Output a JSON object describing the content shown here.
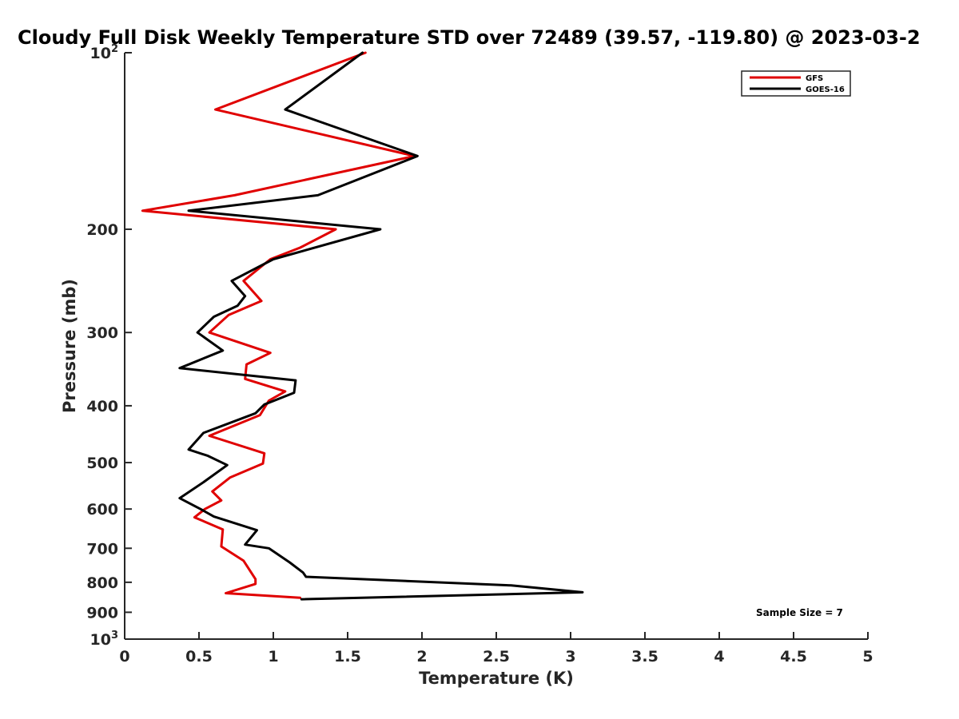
{
  "chart_data": {
    "type": "line",
    "title": "Cloudy Full Disk Weekly Temperature STD over 72489 (39.57, -119.80) @ 2023-03-2",
    "xlabel": "Temperature (K)",
    "ylabel": "Pressure (mb)",
    "xlim": [
      0,
      5
    ],
    "ylim": [
      100,
      1000
    ],
    "y_scale": "log",
    "y_reversed": true,
    "grid": false,
    "x_ticks": [
      {
        "value": 0,
        "label": "0"
      },
      {
        "value": 0.5,
        "label": "0.5"
      },
      {
        "value": 1,
        "label": "1"
      },
      {
        "value": 1.5,
        "label": "1.5"
      },
      {
        "value": 2,
        "label": "2"
      },
      {
        "value": 2.5,
        "label": "2.5"
      },
      {
        "value": 3,
        "label": "3"
      },
      {
        "value": 3.5,
        "label": "3.5"
      },
      {
        "value": 4,
        "label": "4"
      },
      {
        "value": 4.5,
        "label": "4.5"
      },
      {
        "value": 5,
        "label": "5"
      }
    ],
    "y_ticks": [
      {
        "value": 100,
        "label": "10",
        "sup": "2"
      },
      {
        "value": 200,
        "label": "200",
        "sup": ""
      },
      {
        "value": 300,
        "label": "300",
        "sup": ""
      },
      {
        "value": 400,
        "label": "400",
        "sup": ""
      },
      {
        "value": 500,
        "label": "500",
        "sup": ""
      },
      {
        "value": 600,
        "label": "600",
        "sup": ""
      },
      {
        "value": 700,
        "label": "700",
        "sup": ""
      },
      {
        "value": 800,
        "label": "800",
        "sup": ""
      },
      {
        "value": 900,
        "label": "900",
        "sup": ""
      },
      {
        "value": 1000,
        "label": "10",
        "sup": "3"
      }
    ],
    "legend_position": "top-right",
    "annotation": "Sample Size = 7",
    "series": [
      {
        "name": "GFS",
        "color": "#e00000",
        "points": [
          {
            "x": 1.62,
            "y": 100
          },
          {
            "x": 0.61,
            "y": 125
          },
          {
            "x": 1.95,
            "y": 150
          },
          {
            "x": 0.74,
            "y": 175
          },
          {
            "x": 0.12,
            "y": 186
          },
          {
            "x": 1.42,
            "y": 200
          },
          {
            "x": 1.18,
            "y": 215
          },
          {
            "x": 0.98,
            "y": 225
          },
          {
            "x": 0.8,
            "y": 245
          },
          {
            "x": 0.92,
            "y": 265
          },
          {
            "x": 0.7,
            "y": 280
          },
          {
            "x": 0.57,
            "y": 300
          },
          {
            "x": 0.98,
            "y": 325
          },
          {
            "x": 0.82,
            "y": 340
          },
          {
            "x": 0.81,
            "y": 360
          },
          {
            "x": 1.08,
            "y": 378
          },
          {
            "x": 0.97,
            "y": 392
          },
          {
            "x": 0.91,
            "y": 415
          },
          {
            "x": 0.57,
            "y": 450
          },
          {
            "x": 0.94,
            "y": 482
          },
          {
            "x": 0.93,
            "y": 502
          },
          {
            "x": 0.71,
            "y": 530
          },
          {
            "x": 0.59,
            "y": 560
          },
          {
            "x": 0.65,
            "y": 580
          },
          {
            "x": 0.54,
            "y": 600
          },
          {
            "x": 0.47,
            "y": 620
          },
          {
            "x": 0.66,
            "y": 650
          },
          {
            "x": 0.65,
            "y": 695
          },
          {
            "x": 0.8,
            "y": 735
          },
          {
            "x": 0.88,
            "y": 790
          },
          {
            "x": 0.88,
            "y": 805
          },
          {
            "x": 0.68,
            "y": 835
          },
          {
            "x": 1.18,
            "y": 850
          }
        ]
      },
      {
        "name": "GOES-16",
        "color": "#000000",
        "points": [
          {
            "x": 1.6,
            "y": 100
          },
          {
            "x": 1.08,
            "y": 125
          },
          {
            "x": 1.97,
            "y": 150
          },
          {
            "x": 1.3,
            "y": 175
          },
          {
            "x": 0.43,
            "y": 186
          },
          {
            "x": 1.72,
            "y": 200
          },
          {
            "x": 1.0,
            "y": 225
          },
          {
            "x": 0.72,
            "y": 245
          },
          {
            "x": 0.81,
            "y": 260
          },
          {
            "x": 0.76,
            "y": 270
          },
          {
            "x": 0.6,
            "y": 282
          },
          {
            "x": 0.49,
            "y": 300
          },
          {
            "x": 0.66,
            "y": 322
          },
          {
            "x": 0.37,
            "y": 345
          },
          {
            "x": 1.15,
            "y": 362
          },
          {
            "x": 1.14,
            "y": 380
          },
          {
            "x": 0.94,
            "y": 398
          },
          {
            "x": 0.88,
            "y": 412
          },
          {
            "x": 0.53,
            "y": 445
          },
          {
            "x": 0.43,
            "y": 475
          },
          {
            "x": 0.56,
            "y": 487
          },
          {
            "x": 0.69,
            "y": 505
          },
          {
            "x": 0.53,
            "y": 540
          },
          {
            "x": 0.37,
            "y": 575
          },
          {
            "x": 0.51,
            "y": 600
          },
          {
            "x": 0.6,
            "y": 618
          },
          {
            "x": 0.89,
            "y": 652
          },
          {
            "x": 0.81,
            "y": 690
          },
          {
            "x": 0.97,
            "y": 700
          },
          {
            "x": 1.11,
            "y": 740
          },
          {
            "x": 1.2,
            "y": 770
          },
          {
            "x": 1.22,
            "y": 783
          },
          {
            "x": 2.6,
            "y": 810
          },
          {
            "x": 3.08,
            "y": 832
          },
          {
            "x": 1.19,
            "y": 855
          }
        ]
      }
    ]
  }
}
